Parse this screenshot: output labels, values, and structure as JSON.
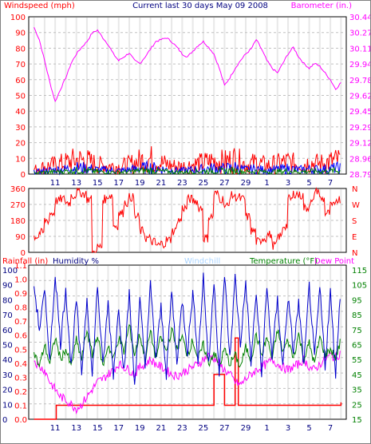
{
  "title": "Current last 30 days May 09 2008",
  "colors": {
    "windspeed": "#ff0000",
    "wind_avg": "#0000ff",
    "wind_gust_low": "#008000",
    "barometer": "#ff00ff",
    "direction": "#ff0000",
    "rainfall": "#ff0000",
    "humidity": "#0000cc",
    "windchill": "#aad4ff",
    "temperature": "#008000",
    "dewpoint": "#ff00ff",
    "grid": "#c0c0c0",
    "day_band": "#e8e8e8"
  },
  "x_ticks": [
    "11",
    "13",
    "15",
    "17",
    "19",
    "21",
    "23",
    "25",
    "27",
    "29",
    "1",
    "3",
    "5",
    "7"
  ],
  "chart_data": [
    {
      "type": "line",
      "title": "Current last 30 days May 09 2008",
      "ylabel_left": "Windspeed (mph)",
      "ylabel_right": "Barometer (in.)",
      "left_ticks": [
        "100",
        "90",
        "80",
        "70",
        "60",
        "50",
        "40",
        "30",
        "20",
        "10",
        "0"
      ],
      "right_ticks": [
        "30.44",
        "30.27",
        "30.11",
        "29.94",
        "29.78",
        "29.62",
        "29.45",
        "29.29",
        "29.12",
        "28.96",
        "28.79"
      ],
      "ylim_left": [
        0,
        100
      ],
      "ylim_right": [
        28.79,
        30.44
      ],
      "series": [
        {
          "name": "Barometer (in.)",
          "axis": "right",
          "x": [
            9.0,
            9.5,
            10.0,
            10.5,
            11.0,
            11.5,
            12.0,
            12.5,
            13.0,
            13.5,
            14.0,
            14.5,
            15.0,
            15.5,
            16.0,
            16.5,
            17.0,
            17.5,
            18.0,
            18.5,
            19.0,
            19.5,
            20.0,
            20.5,
            21.0,
            21.5,
            22.0,
            22.5,
            23.0,
            23.5,
            24.0,
            24.5,
            25.0,
            25.5,
            26.0,
            26.5,
            27.0,
            27.5,
            28.0,
            28.5,
            29.0,
            29.5,
            30.0,
            30.5,
            31.0,
            31.5,
            32.0,
            32.5,
            33.0,
            33.5,
            34.0,
            34.5,
            35.0,
            35.5,
            36.0,
            36.5,
            37.0,
            37.5,
            38.0
          ],
          "values": [
            30.33,
            30.2,
            29.98,
            29.75,
            29.55,
            29.68,
            29.8,
            29.95,
            30.05,
            30.12,
            30.18,
            30.27,
            30.3,
            30.22,
            30.15,
            30.05,
            29.98,
            30.02,
            30.06,
            29.98,
            29.95,
            30.02,
            30.1,
            30.18,
            30.2,
            30.22,
            30.18,
            30.12,
            30.05,
            30.02,
            30.08,
            30.14,
            30.18,
            30.12,
            30.05,
            29.9,
            29.72,
            29.8,
            29.9,
            29.98,
            30.05,
            30.1,
            30.2,
            30.1,
            29.98,
            29.9,
            29.85,
            29.95,
            30.05,
            30.12,
            30.02,
            29.95,
            29.9,
            29.95,
            29.92,
            29.85,
            29.78,
            29.68,
            29.75
          ]
        },
        {
          "name": "Windspeed (mph)",
          "axis": "left",
          "x": [
            9,
            10,
            11,
            12,
            13,
            14,
            15,
            16,
            17,
            18,
            19,
            20,
            21,
            22,
            23,
            24,
            25,
            26,
            27,
            28,
            29,
            30,
            31,
            32,
            33,
            34,
            35,
            36,
            37,
            38
          ],
          "values": [
            5,
            8,
            10,
            12,
            15,
            14,
            10,
            9,
            8,
            10,
            14,
            16,
            12,
            9,
            8,
            10,
            12,
            14,
            13,
            16,
            10,
            12,
            9,
            11,
            13,
            10,
            12,
            11,
            13,
            15
          ]
        }
      ]
    },
    {
      "type": "scatter",
      "ylabel_right": [
        "N",
        "W",
        "S",
        "E",
        "N"
      ],
      "left_ticks": [
        "360",
        "270",
        "180",
        "90",
        "0"
      ],
      "ylim": [
        0,
        360
      ],
      "series": [
        {
          "name": "Wind direction",
          "x": [
            9,
            9.5,
            10,
            10.5,
            11,
            11.5,
            12,
            12.5,
            13,
            13.5,
            14,
            14.5,
            15,
            15.5,
            16,
            16.5,
            17,
            17.5,
            18,
            18.5,
            19,
            19.5,
            20,
            20.5,
            21,
            21.5,
            22,
            22.5,
            23,
            23.5,
            24,
            24.5,
            25,
            25.5,
            26,
            26.5,
            27,
            27.5,
            28,
            28.5,
            29,
            29.5,
            30,
            30.5,
            31,
            31.5,
            32,
            32.5,
            33,
            33.5,
            34,
            34.5,
            35,
            35.5,
            36,
            36.5,
            37,
            37.5,
            38
          ],
          "values": [
            90,
            110,
            180,
            220,
            290,
            300,
            280,
            320,
            340,
            330,
            300,
            0,
            30,
            300,
            320,
            150,
            220,
            280,
            310,
            200,
            120,
            80,
            60,
            40,
            50,
            70,
            120,
            180,
            250,
            300,
            290,
            250,
            80,
            200,
            330,
            300,
            260,
            320,
            310,
            300,
            200,
            120,
            60,
            80,
            100,
            40,
            90,
            150,
            300,
            330,
            320,
            250,
            280,
            350,
            300,
            220,
            260,
            300,
            240
          ]
        }
      ]
    },
    {
      "type": "line",
      "ylabel_left": "Rainfall (in)",
      "ylabel_mid": "Humidity %",
      "ylabel_windchill": "Windchill",
      "ylabel_right": "Temperature (°F)",
      "ylabel_dew": "Dew Point",
      "rain_ticks": [
        "1.1",
        "1.0",
        "0.9",
        "0.8",
        "0.7",
        "0.6",
        "0.5",
        "0.4",
        "0.3",
        "0.2",
        "0.1",
        "0.0"
      ],
      "humidity_ticks": [
        "100",
        "90",
        "80",
        "70",
        "60",
        "50",
        "40",
        "30",
        "20",
        "10",
        "0"
      ],
      "temp_ticks": [
        "115",
        "105",
        "95",
        "85",
        "75",
        "65",
        "55",
        "45",
        "35",
        "25",
        "15"
      ],
      "ylim_humidity": [
        0,
        100
      ],
      "ylim_temp": [
        15,
        115
      ],
      "ylim_rain": [
        0,
        1.1
      ],
      "series": [
        {
          "name": "Humidity %",
          "axis": "humidity",
          "x": [
            9.0,
            9.5,
            10.0,
            10.5,
            11.0,
            11.5,
            12.0,
            12.5,
            13.0,
            13.5,
            14.0,
            14.5,
            15.0,
            15.5,
            16.0,
            16.5,
            17.0,
            17.5,
            18.0,
            18.5,
            19.0,
            19.5,
            20.0,
            20.5,
            21.0,
            21.5,
            22.0,
            22.5,
            23.0,
            23.5,
            24.0,
            24.5,
            25.0,
            25.5,
            26.0,
            26.5,
            27.0,
            27.5,
            28.0,
            28.5,
            29.0,
            29.5,
            30.0,
            30.5,
            31.0,
            31.5,
            32.0,
            32.5,
            33.0,
            33.5,
            34.0,
            34.5,
            35.0,
            35.5,
            36.0,
            36.5,
            37.0,
            37.5,
            38.0
          ],
          "values": [
            90,
            60,
            85,
            40,
            98,
            50,
            88,
            35,
            80,
            30,
            82,
            28,
            90,
            35,
            78,
            30,
            75,
            32,
            85,
            22,
            80,
            35,
            90,
            40,
            75,
            30,
            86,
            38,
            80,
            45,
            85,
            40,
            96,
            35,
            94,
            30,
            98,
            40,
            95,
            50,
            92,
            38,
            85,
            30,
            88,
            42,
            80,
            35,
            82,
            45,
            78,
            35,
            90,
            40,
            88,
            36,
            85,
            30,
            95
          ]
        },
        {
          "name": "Temperature (°F)",
          "axis": "temp",
          "x": [
            9.0,
            9.5,
            10.0,
            10.5,
            11.0,
            11.5,
            12.0,
            12.5,
            13.0,
            13.5,
            14.0,
            14.5,
            15.0,
            15.5,
            16.0,
            16.5,
            17.0,
            17.5,
            18.0,
            18.5,
            19.0,
            19.5,
            20.0,
            20.5,
            21.0,
            21.5,
            22.0,
            22.5,
            23.0,
            23.5,
            24.0,
            24.5,
            25.0,
            25.5,
            26.0,
            26.5,
            27.0,
            27.5,
            28.0,
            28.5,
            29.0,
            29.5,
            30.0,
            30.5,
            31.0,
            31.5,
            32.0,
            32.5,
            33.0,
            33.5,
            34.0,
            34.5,
            35.0,
            35.5,
            36.0,
            36.5,
            37.0,
            37.5,
            38.0
          ],
          "values": [
            60,
            50,
            65,
            52,
            70,
            55,
            62,
            50,
            68,
            55,
            75,
            58,
            72,
            50,
            65,
            55,
            70,
            60,
            78,
            58,
            72,
            55,
            74,
            56,
            70,
            60,
            75,
            62,
            70,
            58,
            68,
            55,
            65,
            52,
            60,
            50,
            62,
            52,
            58,
            50,
            63,
            55,
            72,
            58,
            70,
            55,
            75,
            60,
            68,
            56,
            72,
            55,
            66,
            52,
            70,
            58,
            62,
            56,
            68
          ]
        },
        {
          "name": "Dew Point",
          "axis": "temp",
          "x": [
            9.0,
            9.5,
            10.0,
            10.5,
            11.0,
            11.5,
            12.0,
            12.5,
            13.0,
            13.5,
            14.0,
            14.5,
            15.0,
            15.5,
            16.0,
            16.5,
            17.0,
            17.5,
            18.0,
            18.5,
            19.0,
            19.5,
            20.0,
            20.5,
            21.0,
            21.5,
            22.0,
            22.5,
            23.0,
            23.5,
            24.0,
            24.5,
            25.0,
            25.5,
            26.0,
            26.5,
            27.0,
            27.5,
            28.0,
            28.5,
            29.0,
            29.5,
            30.0,
            30.5,
            31.0,
            31.5,
            32.0,
            32.5,
            33.0,
            33.5,
            34.0,
            34.5,
            35.0,
            35.5,
            36.0,
            36.5,
            37.0,
            37.5,
            38.0
          ],
          "values": [
            55,
            50,
            48,
            40,
            35,
            30,
            28,
            25,
            22,
            25,
            30,
            35,
            40,
            42,
            45,
            48,
            52,
            50,
            48,
            45,
            50,
            52,
            55,
            52,
            50,
            48,
            45,
            44,
            46,
            48,
            50,
            52,
            55,
            58,
            56,
            52,
            48,
            45,
            40,
            38,
            42,
            45,
            48,
            50,
            52,
            55,
            52,
            50,
            48,
            50,
            52,
            55,
            50,
            48,
            52,
            55,
            58,
            56,
            60
          ]
        },
        {
          "name": "Rainfall (in)",
          "axis": "rain",
          "x": [
            9,
            10,
            11,
            11.1,
            14,
            16,
            18,
            20,
            22,
            24,
            25.9,
            26,
            26.9,
            27,
            27.9,
            28,
            28.3,
            37.9,
            38
          ],
          "values": [
            0,
            0,
            0,
            0.1,
            0.1,
            0.1,
            0.1,
            0.1,
            0.1,
            0.1,
            0.1,
            0.32,
            0.32,
            0.1,
            0.1,
            0.58,
            0.1,
            0.1,
            0.12
          ]
        }
      ]
    }
  ]
}
